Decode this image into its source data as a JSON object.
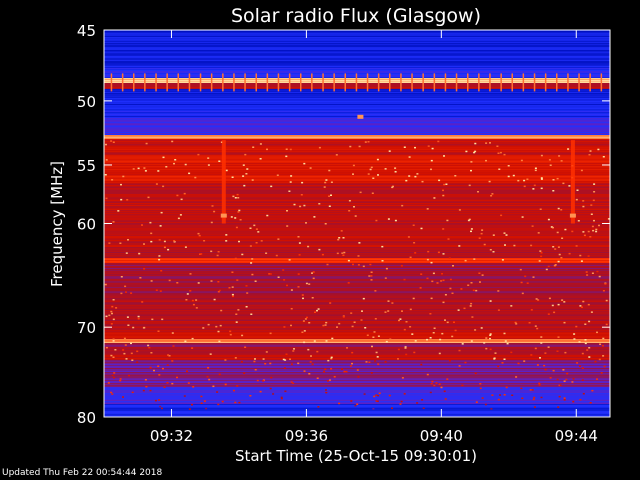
{
  "chart_data": {
    "type": "heatmap",
    "title": "Solar radio Flux (Glasgow)",
    "xlabel": "Start Time (25-Oct-15 09:30:01)",
    "ylabel": "Frequency [MHz]",
    "x_range_minutes": [
      0,
      15
    ],
    "x_ticks": [
      {
        "minute": 2,
        "label": "09:32"
      },
      {
        "minute": 6,
        "label": "09:36"
      },
      {
        "minute": 10,
        "label": "09:40"
      },
      {
        "minute": 14,
        "label": "09:44"
      }
    ],
    "ylim": [
      45,
      80
    ],
    "y_ticks": [
      {
        "value": 45,
        "label": "45"
      },
      {
        "value": 50,
        "label": "50"
      },
      {
        "value": 55,
        "label": "55"
      },
      {
        "value": 60,
        "label": "60"
      },
      {
        "value": 70,
        "label": "70"
      },
      {
        "value": 80,
        "label": "80"
      }
    ],
    "y_scale": "log",
    "colormap": [
      "#000060",
      "#0010c0",
      "#2030ff",
      "#6020c0",
      "#a01030",
      "#d01000",
      "#ff3000",
      "#ff8040",
      "#ffe0a0"
    ],
    "spectrum_bands": [
      {
        "from": 45,
        "to": 45.3,
        "level": 0.15
      },
      {
        "from": 45.3,
        "to": 47.6,
        "level": 0.18
      },
      {
        "from": 47.6,
        "to": 48.3,
        "level": 0.25
      },
      {
        "from": 48.3,
        "to": 48.7,
        "level": 0.97
      },
      {
        "from": 48.7,
        "to": 49.1,
        "level": 0.55
      },
      {
        "from": 49.1,
        "to": 50.3,
        "level": 0.2
      },
      {
        "from": 50.3,
        "to": 51.3,
        "level": 0.22
      },
      {
        "from": 51.3,
        "to": 52.6,
        "level": 0.3
      },
      {
        "from": 52.6,
        "to": 52.9,
        "level": 0.9
      },
      {
        "from": 52.9,
        "to": 54.2,
        "level": 0.6
      },
      {
        "from": 54.2,
        "to": 56.5,
        "level": 0.65
      },
      {
        "from": 56.5,
        "to": 62.5,
        "level": 0.58
      },
      {
        "from": 62.5,
        "to": 63.2,
        "level": 0.52
      },
      {
        "from": 63.2,
        "to": 63.6,
        "level": 0.72
      },
      {
        "from": 63.6,
        "to": 66.5,
        "level": 0.5
      },
      {
        "from": 66.5,
        "to": 70.5,
        "level": 0.55
      },
      {
        "from": 70.5,
        "to": 71.2,
        "level": 0.62
      },
      {
        "from": 71.2,
        "to": 71.7,
        "level": 0.9
      },
      {
        "from": 71.7,
        "to": 73.0,
        "level": 0.5
      },
      {
        "from": 73.0,
        "to": 73.5,
        "level": 0.6
      },
      {
        "from": 73.5,
        "to": 76.5,
        "level": 0.42
      },
      {
        "from": 76.5,
        "to": 78.5,
        "level": 0.32
      },
      {
        "from": 78.5,
        "to": 80,
        "level": 0.22
      }
    ],
    "features": [
      {
        "kind": "vertical_streak",
        "minute": 3.55,
        "from": 53.0,
        "to": 60.0
      },
      {
        "kind": "vertical_streak",
        "minute": 13.9,
        "from": 53.0,
        "to": 60.0
      },
      {
        "kind": "spot",
        "minute": 3.55,
        "freq": 59.3
      },
      {
        "kind": "spot",
        "minute": 13.9,
        "freq": 59.3
      },
      {
        "kind": "spot",
        "minute": 7.6,
        "freq": 51.2
      }
    ]
  },
  "footer": {
    "updated": "Updated Thu Feb 22 00:54:44 2018"
  }
}
